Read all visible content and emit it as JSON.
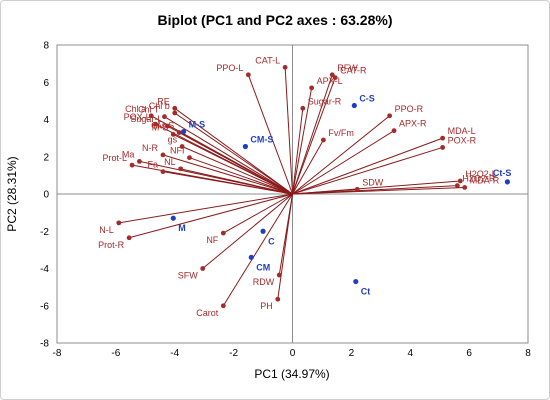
{
  "chart_data": {
    "type": "scatter",
    "title": "Biplot (PC1 and PC2 axes : 63.28%)",
    "xlabel": "PC1 (34.97%)",
    "ylabel": "PC2 (28.31%)",
    "xlim": [
      -8,
      8
    ],
    "ylim": [
      -8,
      8
    ],
    "xticks": [
      "-8",
      "-6",
      "-4",
      "-2",
      "0",
      "2",
      "4",
      "6",
      "8"
    ],
    "yticks": [
      "-8",
      "-6",
      "-4",
      "-2",
      "0",
      "2",
      "4",
      "6",
      "8"
    ],
    "colors": {
      "variables": "#a52a2a",
      "observations": "#1f3fbf",
      "vector_line": "#8b1a1a"
    },
    "variables": [
      {
        "name": "CAT-L",
        "x": -0.25,
        "y": 6.8
      },
      {
        "name": "PPO-L",
        "x": -1.5,
        "y": 6.4
      },
      {
        "name": "RFW",
        "x": 1.35,
        "y": 6.4
      },
      {
        "name": "CAT-R",
        "x": 1.45,
        "y": 6.25
      },
      {
        "name": "APX-L",
        "x": 0.65,
        "y": 5.7
      },
      {
        "name": "Sugar-R",
        "x": 0.35,
        "y": 4.6
      },
      {
        "name": "PPO-R",
        "x": 3.3,
        "y": 4.2
      },
      {
        "name": "APX-R",
        "x": 3.45,
        "y": 3.4
      },
      {
        "name": "Fv/Fm",
        "x": 1.05,
        "y": 2.9
      },
      {
        "name": "MDA-L",
        "x": 5.1,
        "y": 3.0
      },
      {
        "name": "POX-R",
        "x": 5.1,
        "y": 2.5
      },
      {
        "name": "H2O2-L",
        "x": 5.7,
        "y": 0.7
      },
      {
        "name": "H2O2-R",
        "x": 5.6,
        "y": 0.45
      },
      {
        "name": "MDA-R",
        "x": 5.85,
        "y": 0.35
      },
      {
        "name": "SDW",
        "x": 2.2,
        "y": 0.25
      },
      {
        "name": "Chl T",
        "x": -4.35,
        "y": 4.15
      },
      {
        "name": "Chl b",
        "x": -4.0,
        "y": 4.35
      },
      {
        "name": "Chl a",
        "x": -4.8,
        "y": 4.2
      },
      {
        "name": "Sugar-L",
        "x": -4.25,
        "y": 3.65
      },
      {
        "name": "POX-L",
        "x": -4.65,
        "y": 3.75
      },
      {
        "name": "RE",
        "x": -4.0,
        "y": 4.6
      },
      {
        "name": "M-S",
        "x": -4.05,
        "y": 3.2
      },
      {
        "name": "CM-S",
        "x": -3.85,
        "y": 3.3
      },
      {
        "name": "gs",
        "x": -3.75,
        "y": 2.55
      },
      {
        "name": "N-R",
        "x": -4.4,
        "y": 2.1
      },
      {
        "name": "NFI",
        "x": -3.5,
        "y": 1.95
      },
      {
        "name": "Ma",
        "x": -5.2,
        "y": 1.75
      },
      {
        "name": "Prot-L",
        "x": -5.45,
        "y": 1.55
      },
      {
        "name": "Fa",
        "x": -4.4,
        "y": 1.2
      },
      {
        "name": "NL",
        "x": -3.8,
        "y": 1.35
      },
      {
        "name": "N-L",
        "x": -5.9,
        "y": -1.55
      },
      {
        "name": "Prot-R",
        "x": -5.55,
        "y": -2.35
      },
      {
        "name": "NF",
        "x": -2.35,
        "y": -2.1
      },
      {
        "name": "SFW",
        "x": -3.05,
        "y": -4.0
      },
      {
        "name": "Carot",
        "x": -2.35,
        "y": -6.0
      },
      {
        "name": "RDW",
        "x": -0.45,
        "y": -4.35
      },
      {
        "name": "PH",
        "x": -0.5,
        "y": -5.65
      }
    ],
    "observations": [
      {
        "name": "C-S",
        "x": 2.1,
        "y": 4.75
      },
      {
        "name": "Ct-S",
        "x": 7.3,
        "y": 0.65
      },
      {
        "name": "Ct",
        "x": 2.15,
        "y": -4.7
      },
      {
        "name": "M-S",
        "x": -3.7,
        "y": 3.35
      },
      {
        "name": "CM-S",
        "x": -1.6,
        "y": 2.55
      },
      {
        "name": "M",
        "x": -4.05,
        "y": -1.3
      },
      {
        "name": "C",
        "x": -1.0,
        "y": -2.0
      },
      {
        "name": "CM",
        "x": -1.4,
        "y": -3.4
      }
    ],
    "grid": false,
    "legend": "none"
  }
}
